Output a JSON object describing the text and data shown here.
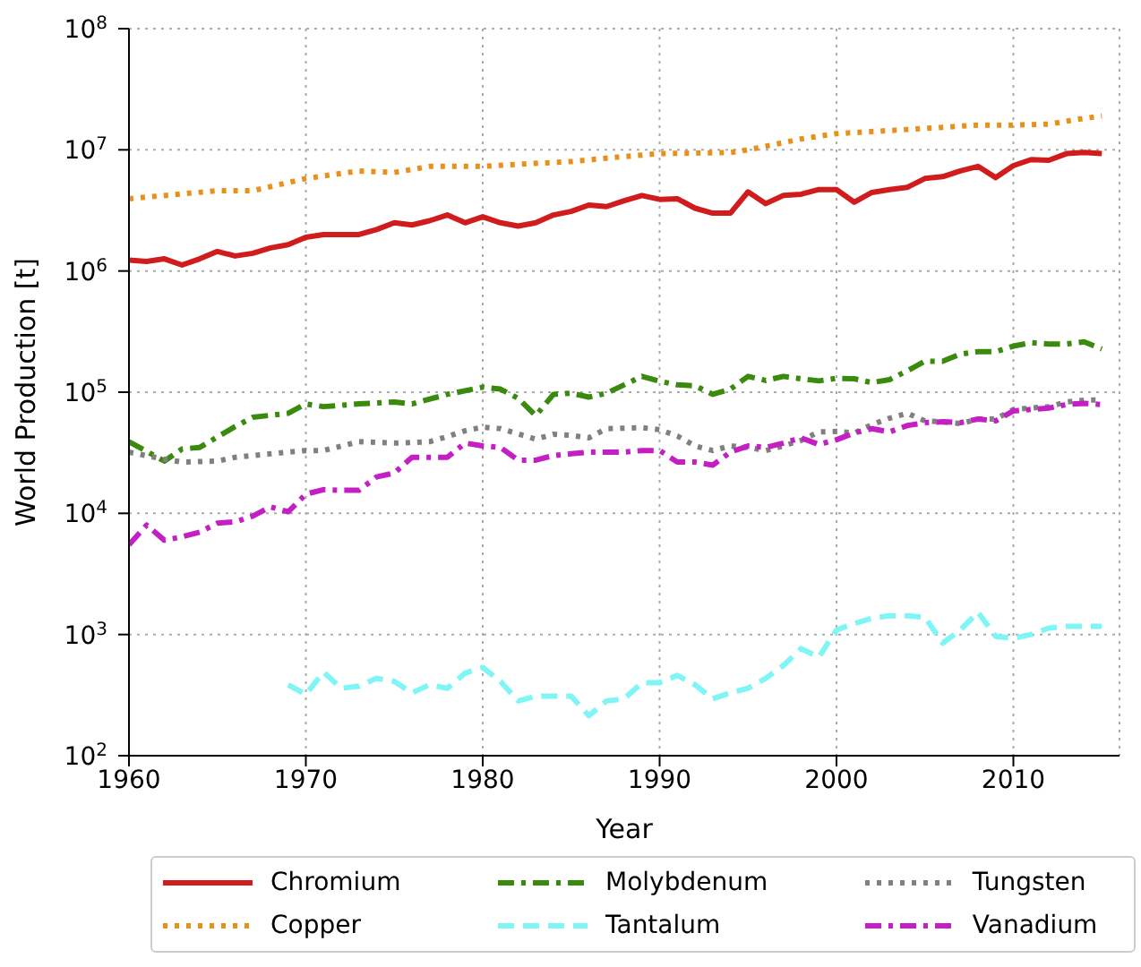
{
  "chart_data": {
    "type": "line",
    "xlabel": "Year",
    "ylabel": "World Production [t]",
    "log": "y",
    "grid": true,
    "legend": "bottom",
    "xlim": [
      1960,
      2016
    ],
    "xticks": [
      1960,
      1970,
      1980,
      1990,
      2000,
      2010
    ],
    "ylim": [
      100,
      100000000
    ],
    "yticks": [
      {
        "value": 100,
        "label": "10$^{2}$"
      },
      {
        "value": 1000,
        "label": "10$^{3}$"
      },
      {
        "value": 10000,
        "label": "10$^{4}$"
      },
      {
        "value": 100000,
        "label": "10$^{5}$"
      },
      {
        "value": 1000000,
        "label": "10$^{6}$"
      },
      {
        "value": 10000000,
        "label": "10$^{7}$"
      },
      {
        "value": 100000000,
        "label": "10$^{8}$"
      }
    ],
    "series": [
      {
        "name": "Chromium",
        "color": "#d01c1c",
        "line_style": "solid",
        "x": [
          1960,
          1961,
          1962,
          1963,
          1964,
          1965,
          1966,
          1967,
          1968,
          1969,
          1970,
          1971,
          1972,
          1973,
          1974,
          1975,
          1976,
          1977,
          1978,
          1979,
          1980,
          1981,
          1982,
          1983,
          1984,
          1985,
          1986,
          1987,
          1988,
          1989,
          1990,
          1991,
          1992,
          1993,
          1994,
          1995,
          1996,
          1997,
          1998,
          1999,
          2000,
          2001,
          2002,
          2003,
          2004,
          2005,
          2006,
          2007,
          2008,
          2009,
          2010,
          2011,
          2012,
          2013,
          2014,
          2015
        ],
        "values": [
          1230000,
          1200000,
          1260000,
          1120000,
          1260000,
          1450000,
          1330000,
          1400000,
          1550000,
          1650000,
          1900000,
          2000000,
          2000000,
          2000000,
          2200000,
          2500000,
          2400000,
          2600000,
          2900000,
          2500000,
          2800000,
          2500000,
          2350000,
          2500000,
          2900000,
          3100000,
          3500000,
          3400000,
          3800000,
          4200000,
          3900000,
          3950000,
          3300000,
          3000000,
          3000000,
          4500000,
          3600000,
          4200000,
          4300000,
          4700000,
          4700000,
          3700000,
          4450000,
          4700000,
          4900000,
          5800000,
          6000000,
          6700000,
          7300000,
          5900000,
          7400000,
          8300000,
          8200000,
          9300000,
          9500000,
          9300000
        ]
      },
      {
        "name": "Copper",
        "color": "#e8901c",
        "line_style": "dotted",
        "x": [
          1960,
          1965,
          1967,
          1970,
          1973,
          1975,
          1977,
          1980,
          1982,
          1985,
          1988,
          1990,
          1994,
          1995,
          1998,
          2000,
          2005,
          2008,
          2010,
          2012,
          2014,
          2015
        ],
        "values": [
          3950000,
          4600000,
          4600000,
          5800000,
          6700000,
          6500000,
          7300000,
          7300000,
          7600000,
          8000000,
          8800000,
          9300000,
          9500000,
          10000000,
          12300000,
          13600000,
          15000000,
          16000000,
          16000000,
          16300000,
          18200000,
          19000000
        ]
      },
      {
        "name": "Molybdenum",
        "color": "#3a8a0e",
        "line_style": "dashdot",
        "x": [
          1960,
          1962,
          1963,
          1964,
          1966,
          1967,
          1969,
          1970,
          1971,
          1973,
          1975,
          1976,
          1978,
          1980,
          1981,
          1982,
          1983,
          1984,
          1985,
          1986,
          1987,
          1989,
          1990,
          1991,
          1992,
          1993,
          1994,
          1995,
          1996,
          1997,
          1998,
          1999,
          2000,
          2001,
          2002,
          2003,
          2004,
          2005,
          2006,
          2007,
          2008,
          2009,
          2010,
          2011,
          2012,
          2013,
          2014,
          2015
        ],
        "values": [
          39000,
          27000,
          34000,
          35000,
          52000,
          62000,
          67000,
          80000,
          76000,
          80000,
          83000,
          80000,
          96000,
          110000,
          106000,
          89000,
          64000,
          96000,
          98000,
          91000,
          98000,
          135000,
          123000,
          115000,
          113000,
          96000,
          106000,
          135000,
          125000,
          135000,
          129000,
          124000,
          130000,
          129000,
          120000,
          127000,
          150000,
          180000,
          180000,
          206000,
          216000,
          216000,
          240000,
          256000,
          250000,
          250000,
          260000,
          227000
        ]
      },
      {
        "name": "Tantalum",
        "color": "#7ff5f5",
        "line_style": "dashed",
        "x": [
          1969,
          1970,
          1971,
          1972,
          1973,
          1974,
          1975,
          1976,
          1977,
          1978,
          1979,
          1980,
          1981,
          1982,
          1983,
          1984,
          1985,
          1986,
          1987,
          1988,
          1989,
          1990,
          1991,
          1992,
          1993,
          1994,
          1995,
          1996,
          1997,
          1998,
          1999,
          2000,
          2001,
          2002,
          2003,
          2004,
          2005,
          2006,
          2007,
          2008,
          2009,
          2010,
          2011,
          2012,
          2013,
          2014,
          2015
        ],
        "values": [
          385,
          320,
          490,
          360,
          375,
          435,
          410,
          330,
          385,
          360,
          480,
          535,
          410,
          283,
          310,
          310,
          310,
          214,
          283,
          295,
          400,
          400,
          460,
          385,
          295,
          330,
          360,
          435,
          555,
          765,
          650,
          1090,
          1230,
          1360,
          1430,
          1430,
          1390,
          850,
          1090,
          1530,
          965,
          930,
          1000,
          1130,
          1170,
          1170,
          1170
        ]
      },
      {
        "name": "Tungsten",
        "color": "#808080",
        "line_style": "dotted",
        "x": [
          1960,
          1962,
          1963,
          1965,
          1966,
          1968,
          1970,
          1971,
          1973,
          1975,
          1977,
          1978,
          1979,
          1980,
          1981,
          1983,
          1984,
          1985,
          1986,
          1987,
          1989,
          1990,
          1991,
          1992,
          1993,
          1994,
          1995,
          1996,
          1997,
          1998,
          1999,
          2000,
          2001,
          2002,
          2003,
          2004,
          2005,
          2006,
          2007,
          2008,
          2009,
          2010,
          2011,
          2012,
          2013,
          2014,
          2015
        ],
        "values": [
          32000,
          28000,
          26500,
          27000,
          29000,
          31000,
          33000,
          33000,
          39000,
          38000,
          39000,
          43000,
          48000,
          51500,
          50000,
          41000,
          45000,
          44000,
          42000,
          50000,
          51000,
          49000,
          43500,
          36000,
          33000,
          36000,
          35000,
          33000,
          36000,
          40000,
          47000,
          47500,
          46000,
          54000,
          61000,
          67000,
          58000,
          57000,
          55000,
          60000,
          60000,
          72000,
          74000,
          76000,
          83000,
          86000,
          86000
        ]
      },
      {
        "name": "Vanadium",
        "color": "#c41fc4",
        "line_style": "dashdot",
        "x": [
          1960,
          1961,
          1962,
          1963,
          1964,
          1965,
          1966,
          1967,
          1968,
          1969,
          1970,
          1971,
          1972,
          1973,
          1974,
          1975,
          1976,
          1977,
          1978,
          1979,
          1980,
          1981,
          1982,
          1983,
          1984,
          1985,
          1986,
          1987,
          1988,
          1989,
          1990,
          1991,
          1992,
          1993,
          1994,
          1995,
          1996,
          1997,
          1998,
          1999,
          2000,
          2001,
          2002,
          2003,
          2004,
          2005,
          2006,
          2007,
          2008,
          2009,
          2010,
          2011,
          2012,
          2013,
          2014,
          2015
        ],
        "values": [
          5500,
          8000,
          6000,
          6400,
          7000,
          8300,
          8500,
          9500,
          11300,
          10300,
          14400,
          15700,
          15500,
          15500,
          20000,
          21500,
          29000,
          29000,
          29000,
          38000,
          36000,
          35000,
          27500,
          27500,
          30000,
          31000,
          32000,
          32000,
          32000,
          33000,
          33000,
          26500,
          26500,
          25000,
          32000,
          36000,
          35000,
          38000,
          42000,
          37000,
          40500,
          46000,
          50000,
          47000,
          53000,
          56000,
          57000,
          56000,
          60000,
          58000,
          70000,
          72000,
          74000,
          79000,
          81000,
          79000
        ]
      }
    ]
  }
}
